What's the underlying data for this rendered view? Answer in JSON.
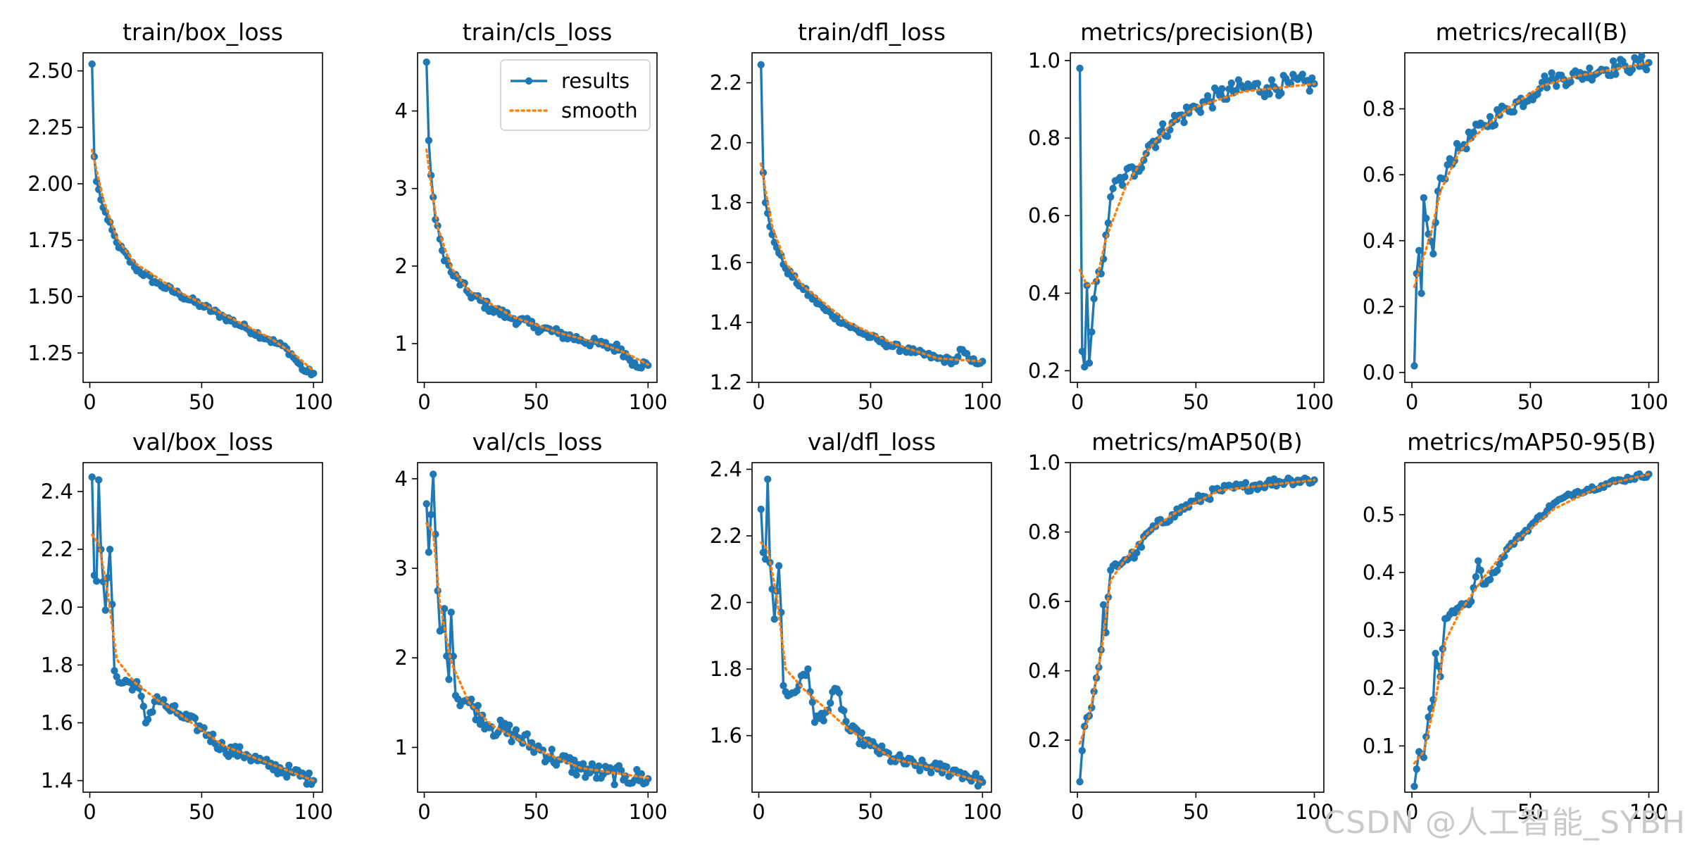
{
  "colors": {
    "results": "#1f77b4",
    "smooth": "#ff7f0e",
    "axes": "#000000"
  },
  "watermark": "CSDN @人工智能_SYBH",
  "legend": {
    "results_label": "results",
    "smooth_label": "smooth",
    "placement": "top-right of train/cls_loss"
  },
  "chart_data": [
    {
      "type": "line",
      "title": "train/box_loss",
      "xlim": [
        -3,
        104
      ],
      "ylim": [
        1.12,
        2.58
      ],
      "xticks": [
        0,
        50,
        100
      ],
      "yticks": [
        1.25,
        1.5,
        1.75,
        2.0,
        2.25,
        2.5
      ],
      "ytick_labels": [
        "1.25",
        "1.50",
        "1.75",
        "2.00",
        "2.25",
        "2.50"
      ],
      "anchors": [
        [
          1,
          2.53
        ],
        [
          2,
          2.12
        ],
        [
          3,
          2.01
        ],
        [
          5,
          1.93
        ],
        [
          8,
          1.84
        ],
        [
          12,
          1.74
        ],
        [
          20,
          1.63
        ],
        [
          30,
          1.56
        ],
        [
          40,
          1.51
        ],
        [
          50,
          1.46
        ],
        [
          60,
          1.41
        ],
        [
          70,
          1.36
        ],
        [
          80,
          1.31
        ],
        [
          88,
          1.27
        ],
        [
          92,
          1.22
        ],
        [
          96,
          1.17
        ],
        [
          100,
          1.16
        ]
      ],
      "noise": 0.01,
      "smooth_anchors": [
        [
          1,
          2.15
        ],
        [
          3,
          2.06
        ],
        [
          6,
          1.93
        ],
        [
          12,
          1.76
        ],
        [
          20,
          1.65
        ],
        [
          40,
          1.52
        ],
        [
          60,
          1.42
        ],
        [
          80,
          1.32
        ],
        [
          92,
          1.24
        ],
        [
          100,
          1.17
        ]
      ]
    },
    {
      "type": "line",
      "title": "train/cls_loss",
      "xlim": [
        -3,
        104
      ],
      "ylim": [
        0.5,
        4.75
      ],
      "xticks": [
        0,
        50,
        100
      ],
      "yticks": [
        1,
        2,
        3,
        4
      ],
      "ytick_labels": [
        "1",
        "2",
        "3",
        "4"
      ],
      "anchors": [
        [
          1,
          4.63
        ],
        [
          2,
          3.62
        ],
        [
          3,
          3.17
        ],
        [
          5,
          2.6
        ],
        [
          8,
          2.2
        ],
        [
          12,
          1.92
        ],
        [
          20,
          1.65
        ],
        [
          30,
          1.45
        ],
        [
          40,
          1.32
        ],
        [
          50,
          1.22
        ],
        [
          60,
          1.13
        ],
        [
          70,
          1.05
        ],
        [
          80,
          0.98
        ],
        [
          88,
          0.93
        ],
        [
          91,
          0.82
        ],
        [
          94,
          0.75
        ],
        [
          100,
          0.72
        ]
      ],
      "noise": 0.015,
      "smooth_anchors": [
        [
          1,
          3.5
        ],
        [
          3,
          3.05
        ],
        [
          6,
          2.5
        ],
        [
          12,
          1.98
        ],
        [
          20,
          1.68
        ],
        [
          40,
          1.34
        ],
        [
          60,
          1.14
        ],
        [
          80,
          0.99
        ],
        [
          90,
          0.88
        ],
        [
          100,
          0.73
        ]
      ]
    },
    {
      "type": "line",
      "title": "train/dfl_loss",
      "xlim": [
        -3,
        104
      ],
      "ylim": [
        1.2,
        2.3
      ],
      "xticks": [
        0,
        50,
        100
      ],
      "yticks": [
        1.2,
        1.4,
        1.6,
        1.8,
        2.0,
        2.2
      ],
      "ytick_labels": [
        "1.2",
        "1.4",
        "1.6",
        "1.8",
        "2.0",
        "2.2"
      ],
      "anchors": [
        [
          1,
          2.26
        ],
        [
          2,
          1.9
        ],
        [
          3,
          1.8
        ],
        [
          5,
          1.72
        ],
        [
          8,
          1.65
        ],
        [
          12,
          1.58
        ],
        [
          20,
          1.51
        ],
        [
          30,
          1.44
        ],
        [
          40,
          1.39
        ],
        [
          50,
          1.35
        ],
        [
          60,
          1.32
        ],
        [
          70,
          1.3
        ],
        [
          80,
          1.28
        ],
        [
          88,
          1.27
        ],
        [
          90,
          1.31
        ],
        [
          95,
          1.27
        ],
        [
          100,
          1.27
        ]
      ],
      "noise": 0.01,
      "smooth_anchors": [
        [
          1,
          1.93
        ],
        [
          3,
          1.84
        ],
        [
          6,
          1.72
        ],
        [
          12,
          1.6
        ],
        [
          20,
          1.52
        ],
        [
          40,
          1.4
        ],
        [
          60,
          1.33
        ],
        [
          80,
          1.28
        ],
        [
          100,
          1.27
        ]
      ]
    },
    {
      "type": "line",
      "title": "metrics/precision(B)",
      "xlim": [
        -3,
        104
      ],
      "ylim": [
        0.17,
        1.02
      ],
      "xticks": [
        0,
        50,
        100
      ],
      "yticks": [
        0.2,
        0.4,
        0.6,
        0.8,
        1.0
      ],
      "ytick_labels": [
        "0.2",
        "0.4",
        "0.6",
        "0.8",
        "1.0"
      ],
      "anchors": [
        [
          1,
          0.98
        ],
        [
          2,
          0.25
        ],
        [
          3,
          0.21
        ],
        [
          4,
          0.42
        ],
        [
          5,
          0.22
        ],
        [
          6,
          0.3
        ],
        [
          8,
          0.43
        ],
        [
          10,
          0.45
        ],
        [
          12,
          0.55
        ],
        [
          15,
          0.67
        ],
        [
          20,
          0.7
        ],
        [
          25,
          0.72
        ],
        [
          30,
          0.78
        ],
        [
          40,
          0.84
        ],
        [
          50,
          0.88
        ],
        [
          60,
          0.91
        ],
        [
          70,
          0.93
        ],
        [
          80,
          0.93
        ],
        [
          90,
          0.94
        ],
        [
          100,
          0.94
        ]
      ],
      "noise": 0.03,
      "smooth_anchors": [
        [
          1,
          0.46
        ],
        [
          4,
          0.42
        ],
        [
          8,
          0.43
        ],
        [
          12,
          0.54
        ],
        [
          20,
          0.67
        ],
        [
          30,
          0.77
        ],
        [
          40,
          0.84
        ],
        [
          50,
          0.88
        ],
        [
          70,
          0.92
        ],
        [
          100,
          0.94
        ]
      ]
    },
    {
      "type": "line",
      "title": "metrics/recall(B)",
      "xlim": [
        -3,
        104
      ],
      "ylim": [
        -0.03,
        0.97
      ],
      "xticks": [
        0,
        50,
        100
      ],
      "yticks": [
        0.0,
        0.2,
        0.4,
        0.6,
        0.8
      ],
      "ytick_labels": [
        "0.0",
        "0.2",
        "0.4",
        "0.6",
        "0.8"
      ],
      "anchors": [
        [
          1,
          0.02
        ],
        [
          2,
          0.3
        ],
        [
          3,
          0.37
        ],
        [
          4,
          0.24
        ],
        [
          5,
          0.53
        ],
        [
          7,
          0.42
        ],
        [
          9,
          0.36
        ],
        [
          11,
          0.55
        ],
        [
          15,
          0.63
        ],
        [
          20,
          0.68
        ],
        [
          30,
          0.75
        ],
        [
          40,
          0.8
        ],
        [
          50,
          0.84
        ],
        [
          55,
          0.88
        ],
        [
          60,
          0.89
        ],
        [
          70,
          0.9
        ],
        [
          80,
          0.92
        ],
        [
          90,
          0.93
        ],
        [
          100,
          0.94
        ]
      ],
      "noise": 0.025,
      "smooth_anchors": [
        [
          1,
          0.26
        ],
        [
          4,
          0.33
        ],
        [
          8,
          0.42
        ],
        [
          12,
          0.55
        ],
        [
          20,
          0.67
        ],
        [
          30,
          0.74
        ],
        [
          40,
          0.8
        ],
        [
          55,
          0.87
        ],
        [
          70,
          0.9
        ],
        [
          100,
          0.94
        ]
      ]
    },
    {
      "type": "line",
      "title": "val/box_loss",
      "xlim": [
        -3,
        104
      ],
      "ylim": [
        1.36,
        2.5
      ],
      "xticks": [
        0,
        50,
        100
      ],
      "yticks": [
        1.4,
        1.6,
        1.8,
        2.0,
        2.2,
        2.4
      ],
      "ytick_labels": [
        "1.4",
        "1.6",
        "1.8",
        "2.0",
        "2.2",
        "2.4"
      ],
      "anchors": [
        [
          1,
          2.45
        ],
        [
          2,
          2.11
        ],
        [
          3,
          2.09
        ],
        [
          4,
          2.44
        ],
        [
          5,
          2.2
        ],
        [
          7,
          1.99
        ],
        [
          9,
          2.2
        ],
        [
          10,
          2.01
        ],
        [
          11,
          1.78
        ],
        [
          13,
          1.74
        ],
        [
          18,
          1.74
        ],
        [
          22,
          1.72
        ],
        [
          25,
          1.6
        ],
        [
          30,
          1.69
        ],
        [
          35,
          1.65
        ],
        [
          40,
          1.63
        ],
        [
          50,
          1.58
        ],
        [
          60,
          1.51
        ],
        [
          70,
          1.49
        ],
        [
          80,
          1.45
        ],
        [
          90,
          1.43
        ],
        [
          100,
          1.4
        ]
      ],
      "noise": 0.02,
      "smooth_anchors": [
        [
          1,
          2.25
        ],
        [
          4,
          2.22
        ],
        [
          8,
          2.05
        ],
        [
          12,
          1.82
        ],
        [
          20,
          1.74
        ],
        [
          30,
          1.68
        ],
        [
          40,
          1.63
        ],
        [
          60,
          1.52
        ],
        [
          80,
          1.46
        ],
        [
          100,
          1.4
        ]
      ]
    },
    {
      "type": "line",
      "title": "val/cls_loss",
      "xlim": [
        -3,
        104
      ],
      "ylim": [
        0.5,
        4.18
      ],
      "xticks": [
        0,
        50,
        100
      ],
      "yticks": [
        1,
        2,
        3,
        4
      ],
      "ytick_labels": [
        "1",
        "2",
        "3",
        "4"
      ],
      "anchors": [
        [
          1,
          3.72
        ],
        [
          2,
          3.18
        ],
        [
          3,
          3.6
        ],
        [
          4,
          4.05
        ],
        [
          5,
          3.38
        ],
        [
          6,
          2.75
        ],
        [
          7,
          2.3
        ],
        [
          9,
          2.55
        ],
        [
          10,
          2.02
        ],
        [
          11,
          1.76
        ],
        [
          12,
          2.51
        ],
        [
          14,
          1.58
        ],
        [
          20,
          1.5
        ],
        [
          30,
          1.23
        ],
        [
          40,
          1.15
        ],
        [
          50,
          1.0
        ],
        [
          60,
          0.86
        ],
        [
          70,
          0.76
        ],
        [
          80,
          0.7
        ],
        [
          90,
          0.68
        ],
        [
          100,
          0.65
        ]
      ],
      "noise": 0.03,
      "smooth_anchors": [
        [
          1,
          3.5
        ],
        [
          4,
          3.4
        ],
        [
          7,
          2.6
        ],
        [
          12,
          1.95
        ],
        [
          20,
          1.5
        ],
        [
          30,
          1.25
        ],
        [
          50,
          0.98
        ],
        [
          70,
          0.77
        ],
        [
          100,
          0.66
        ]
      ]
    },
    {
      "type": "line",
      "title": "val/dfl_loss",
      "xlim": [
        -3,
        104
      ],
      "ylim": [
        1.43,
        2.42
      ],
      "xticks": [
        0,
        50,
        100
      ],
      "yticks": [
        1.6,
        1.8,
        2.0,
        2.2,
        2.4
      ],
      "ytick_labels": [
        "1.6",
        "1.8",
        "2.0",
        "2.2",
        "2.4"
      ],
      "anchors": [
        [
          1,
          2.28
        ],
        [
          2,
          2.15
        ],
        [
          3,
          2.13
        ],
        [
          4,
          2.37
        ],
        [
          5,
          2.12
        ],
        [
          7,
          1.95
        ],
        [
          9,
          2.11
        ],
        [
          10,
          1.97
        ],
        [
          11,
          1.75
        ],
        [
          13,
          1.72
        ],
        [
          18,
          1.75
        ],
        [
          22,
          1.8
        ],
        [
          25,
          1.64
        ],
        [
          30,
          1.67
        ],
        [
          35,
          1.74
        ],
        [
          40,
          1.62
        ],
        [
          50,
          1.57
        ],
        [
          60,
          1.53
        ],
        [
          70,
          1.51
        ],
        [
          80,
          1.5
        ],
        [
          90,
          1.49
        ],
        [
          100,
          1.46
        ]
      ],
      "noise": 0.02,
      "smooth_anchors": [
        [
          1,
          2.18
        ],
        [
          4,
          2.16
        ],
        [
          8,
          2.02
        ],
        [
          12,
          1.8
        ],
        [
          20,
          1.74
        ],
        [
          30,
          1.68
        ],
        [
          40,
          1.62
        ],
        [
          60,
          1.53
        ],
        [
          80,
          1.5
        ],
        [
          100,
          1.46
        ]
      ]
    },
    {
      "type": "line",
      "title": "metrics/mAP50(B)",
      "xlim": [
        -3,
        104
      ],
      "ylim": [
        0.05,
        1.0
      ],
      "xticks": [
        0,
        50,
        100
      ],
      "yticks": [
        0.2,
        0.4,
        0.6,
        0.8,
        1.0
      ],
      "ytick_labels": [
        "0.2",
        "0.4",
        "0.6",
        "0.8",
        "1.0"
      ],
      "anchors": [
        [
          1,
          0.08
        ],
        [
          2,
          0.17
        ],
        [
          3,
          0.24
        ],
        [
          5,
          0.27
        ],
        [
          7,
          0.34
        ],
        [
          9,
          0.41
        ],
        [
          10,
          0.46
        ],
        [
          11,
          0.59
        ],
        [
          12,
          0.51
        ],
        [
          14,
          0.69
        ],
        [
          20,
          0.72
        ],
        [
          25,
          0.74
        ],
        [
          30,
          0.8
        ],
        [
          40,
          0.85
        ],
        [
          50,
          0.89
        ],
        [
          60,
          0.92
        ],
        [
          70,
          0.93
        ],
        [
          80,
          0.94
        ],
        [
          90,
          0.95
        ],
        [
          100,
          0.95
        ]
      ],
      "noise": 0.015,
      "smooth_anchors": [
        [
          1,
          0.19
        ],
        [
          5,
          0.27
        ],
        [
          10,
          0.45
        ],
        [
          14,
          0.66
        ],
        [
          20,
          0.72
        ],
        [
          30,
          0.8
        ],
        [
          40,
          0.85
        ],
        [
          60,
          0.92
        ],
        [
          100,
          0.95
        ]
      ]
    },
    {
      "type": "line",
      "title": "metrics/mAP50-95(B)",
      "xlim": [
        -3,
        104
      ],
      "ylim": [
        0.02,
        0.59
      ],
      "xticks": [
        0,
        50,
        100
      ],
      "yticks": [
        0.1,
        0.2,
        0.3,
        0.4,
        0.5
      ],
      "ytick_labels": [
        "0.1",
        "0.2",
        "0.3",
        "0.4",
        "0.5"
      ],
      "anchors": [
        [
          1,
          0.03
        ],
        [
          2,
          0.06
        ],
        [
          3,
          0.09
        ],
        [
          5,
          0.08
        ],
        [
          7,
          0.15
        ],
        [
          9,
          0.18
        ],
        [
          10,
          0.26
        ],
        [
          12,
          0.22
        ],
        [
          14,
          0.32
        ],
        [
          20,
          0.34
        ],
        [
          25,
          0.35
        ],
        [
          28,
          0.42
        ],
        [
          30,
          0.38
        ],
        [
          35,
          0.4
        ],
        [
          40,
          0.44
        ],
        [
          50,
          0.48
        ],
        [
          60,
          0.52
        ],
        [
          70,
          0.54
        ],
        [
          80,
          0.55
        ],
        [
          88,
          0.56
        ],
        [
          100,
          0.57
        ]
      ],
      "noise": 0.008,
      "smooth_anchors": [
        [
          1,
          0.07
        ],
        [
          5,
          0.09
        ],
        [
          10,
          0.18
        ],
        [
          14,
          0.28
        ],
        [
          20,
          0.33
        ],
        [
          30,
          0.39
        ],
        [
          40,
          0.44
        ],
        [
          60,
          0.51
        ],
        [
          80,
          0.55
        ],
        [
          100,
          0.57
        ]
      ]
    }
  ]
}
